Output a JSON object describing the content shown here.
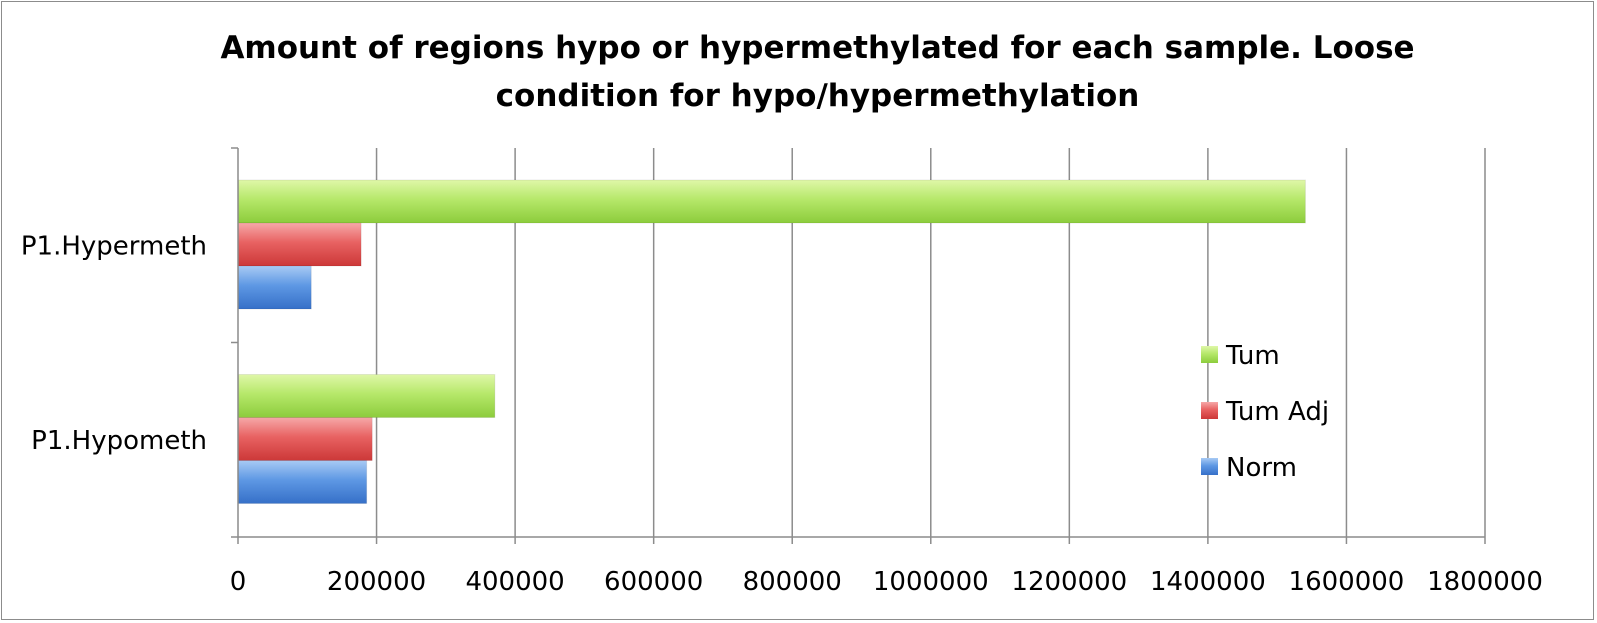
{
  "chart_data": {
    "type": "bar",
    "orientation": "horizontal",
    "title": "Amount of regions hypo or hypermethylated for each sample. Loose condition for hypo/hypermethylation",
    "xlabel": "",
    "ylabel": "",
    "categories": [
      "P1.Hypermeth",
      "P1.Hypometh"
    ],
    "series": [
      {
        "name": "Tum",
        "values": [
          1540000,
          370000
        ],
        "color": "#a8dc5a"
      },
      {
        "name": "Tum Adj",
        "values": [
          177000,
          193000
        ],
        "color": "#e05050"
      },
      {
        "name": "Norm",
        "values": [
          105000,
          185000
        ],
        "color": "#4a86d8"
      }
    ],
    "xlim": [
      0,
      1800000
    ],
    "xticks": [
      "0",
      "200000",
      "400000",
      "600000",
      "800000",
      "1000000",
      "1200000",
      "1400000",
      "1600000",
      "1800000"
    ],
    "grid": true,
    "legend_position": "right"
  }
}
